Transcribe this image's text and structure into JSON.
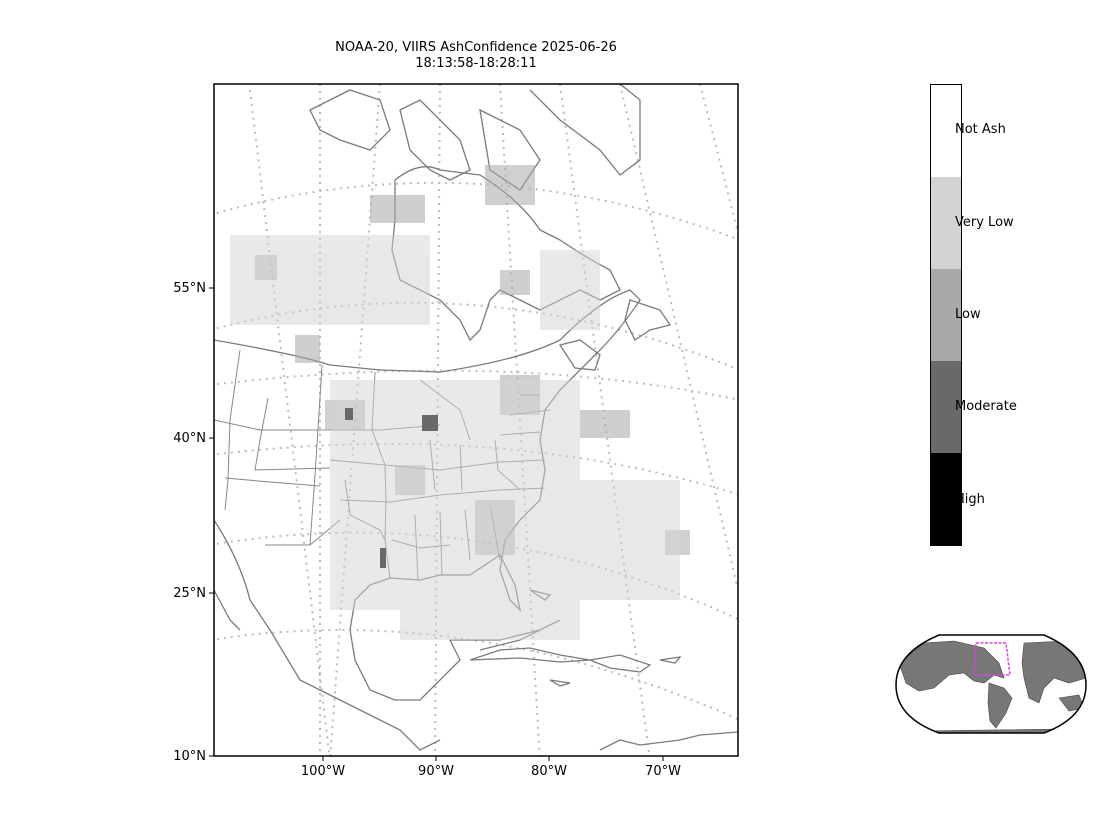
{
  "map": {
    "title_line1": "NOAA-20, VIIRS AshConfidence 2025-06-26",
    "title_line2": "18:13:58-18:28:11",
    "lat_labels": [
      "55°N",
      "40°N",
      "25°N",
      "10°N"
    ],
    "lon_labels": [
      "100°W",
      "90°W",
      "80°W",
      "70°W"
    ],
    "colors": {
      "land_border": "#7a7a7a",
      "graticule": "#bbbbbb",
      "inset_box": "#e040e0"
    }
  },
  "colorbar": {
    "categories": [
      "Not Ash",
      "Very Low",
      "Low",
      "Moderate",
      "High"
    ],
    "colors": [
      "#ffffff",
      "#d3d3d3",
      "#a9a9a9",
      "#696969",
      "#000000"
    ]
  }
}
